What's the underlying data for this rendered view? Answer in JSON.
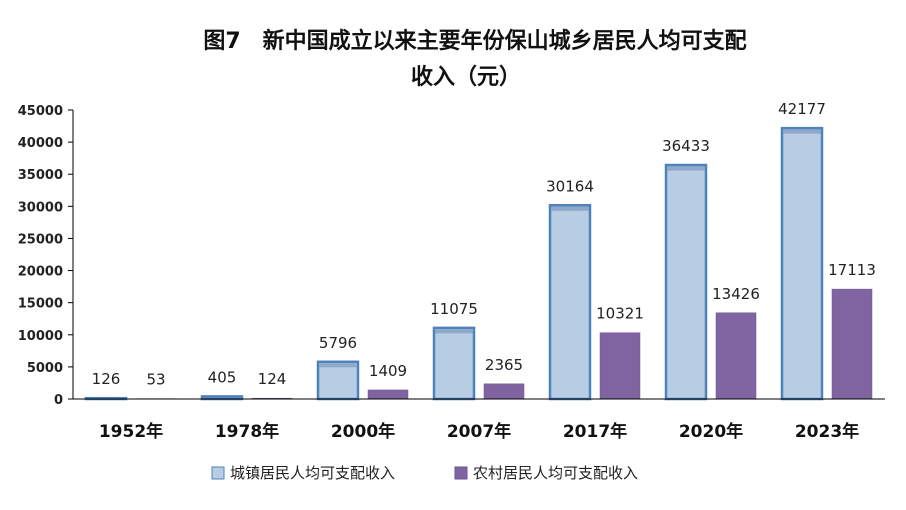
{
  "chart_data": {
    "type": "bar",
    "title_line1": "图7　新中国成立以来主要年份保山城乡居民人均可支配",
    "title_line2": "收入（元）",
    "categories": [
      "1952年",
      "1978年",
      "2000年",
      "2007年",
      "2017年",
      "2020年",
      "2023年"
    ],
    "series": [
      {
        "name": "城镇居民人均可支配收入",
        "values": [
          126,
          405,
          5796,
          11075,
          30164,
          36433,
          42177
        ],
        "color": "#b8cce4",
        "edge": "#4f81bd"
      },
      {
        "name": "农村居民人均可支配收入",
        "values": [
          53,
          124,
          1409,
          2365,
          10321,
          13426,
          17113
        ],
        "color": "#8064a2",
        "edge": "#6c5390"
      }
    ],
    "ylim": [
      0,
      45000
    ],
    "yticks": [
      0,
      5000,
      10000,
      15000,
      20000,
      25000,
      30000,
      35000,
      40000,
      45000
    ],
    "xlabel": "",
    "ylabel": "",
    "grid": false,
    "legend_position": "bottom"
  }
}
